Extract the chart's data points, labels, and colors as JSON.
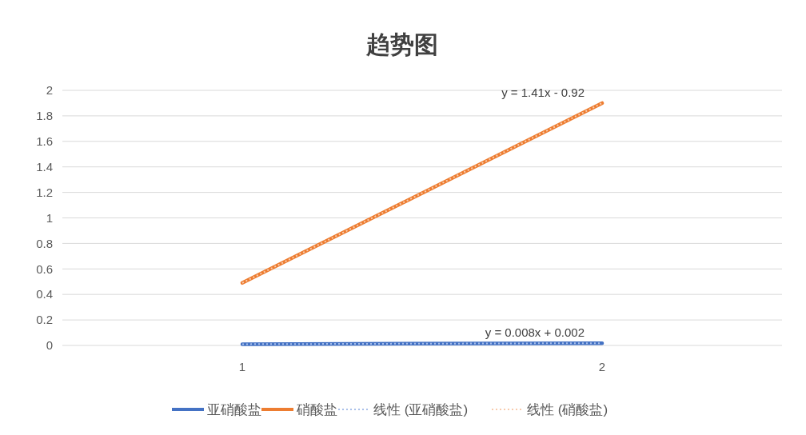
{
  "chart_data": {
    "type": "line",
    "title": "趋势图",
    "categories": [
      "1",
      "2"
    ],
    "series": [
      {
        "name": "亚硝酸盐",
        "color": "#4472c4",
        "values": [
          0.01,
          0.018
        ]
      },
      {
        "name": "硝酸盐",
        "color": "#ed7d31",
        "values": [
          0.49,
          1.9
        ]
      },
      {
        "name": "线性 (亚硝酸盐)",
        "color": "#a9c0ea",
        "values": [
          0.01,
          0.018
        ],
        "line_style": "dotted"
      },
      {
        "name": "线性 (硝酸盐)",
        "color": "#f8cbad",
        "values": [
          0.49,
          1.9
        ],
        "line_style": "dotted"
      }
    ],
    "ylim": [
      0,
      2
    ],
    "yticks": [
      0,
      0.2,
      0.4,
      0.6,
      0.8,
      1,
      1.2,
      1.4,
      1.6,
      1.8,
      2
    ],
    "grid": "y",
    "legend": "bottom",
    "line_style": "solid",
    "marker": "none",
    "annotations": [
      {
        "text": "y = 1.41x - 0.92",
        "x": "2",
        "y": 1.9
      },
      {
        "text": "y = 0.008x + 0.002",
        "x": "2",
        "y": 0.018
      }
    ]
  }
}
